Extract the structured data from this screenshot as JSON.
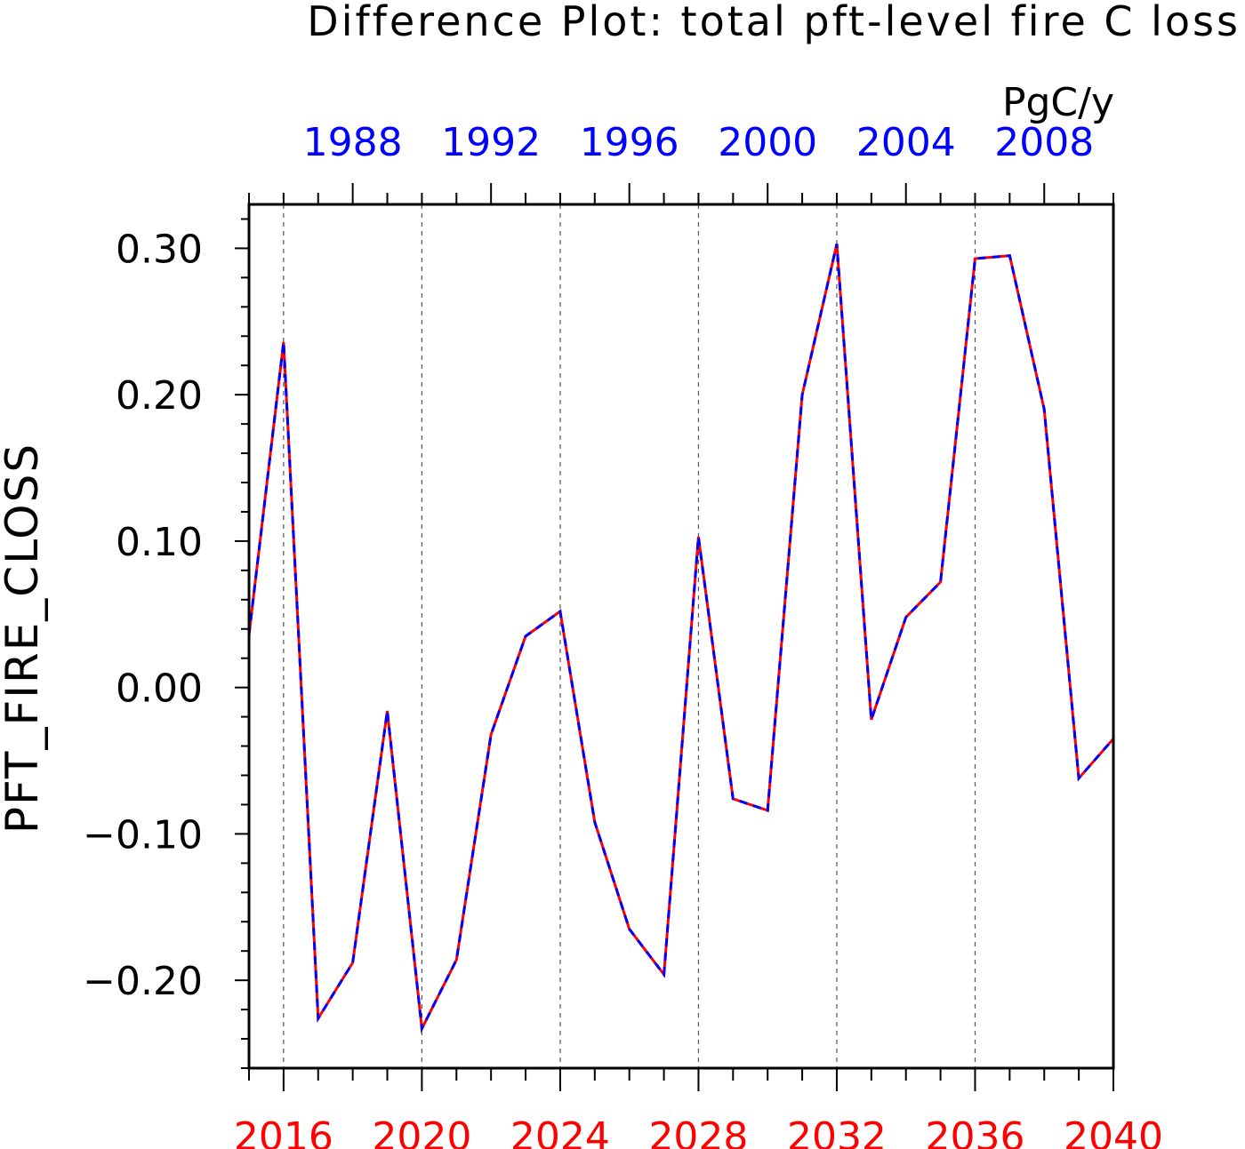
{
  "chart_data": {
    "type": "line",
    "title": "Difference Plot: total pft-level fire C loss",
    "units": "PgC/y",
    "ylabel": "PFT_FIRE_CLOSS",
    "xlabel": "",
    "ylim": [
      -0.26,
      0.33
    ],
    "yticks": [
      -0.2,
      -0.1,
      0.0,
      0.1,
      0.2,
      0.3
    ],
    "ytick_labels": [
      "-0.20",
      "-0.10",
      "0.00",
      "0.10",
      "0.20",
      "0.30"
    ],
    "bottom_axis": {
      "color": "#ff0000",
      "range": [
        2015,
        2040
      ],
      "ticks": [
        2016,
        2020,
        2024,
        2028,
        2032,
        2036,
        2040
      ],
      "tick_labels": [
        "2016",
        "2020",
        "2024",
        "2028",
        "2032",
        "2036",
        "2040"
      ]
    },
    "top_axis": {
      "color": "#0000ff",
      "range": [
        1985,
        2010
      ],
      "ticks": [
        1988,
        1992,
        1996,
        2000,
        2004,
        2008
      ],
      "tick_labels": [
        "1988",
        "1992",
        "1996",
        "2000",
        "2004",
        "2008"
      ]
    },
    "grid": "vertical dashed at labeled bottom-axis ticks",
    "x": [
      2015,
      2016,
      2017,
      2018,
      2019,
      2020,
      2021,
      2022,
      2023,
      2024,
      2025,
      2026,
      2027,
      2028,
      2029,
      2030,
      2031,
      2032,
      2033,
      2034,
      2035,
      2036,
      2037,
      2038,
      2039,
      2040
    ],
    "series": [
      {
        "color": "#ff0000",
        "style": "solid",
        "values": [
          0.036,
          0.236,
          -0.226,
          -0.188,
          -0.016,
          -0.233,
          -0.186,
          -0.032,
          0.035,
          0.052,
          -0.092,
          -0.165,
          -0.196,
          0.103,
          -0.076,
          -0.084,
          0.2,
          0.303,
          -0.022,
          0.048,
          0.072,
          0.293,
          0.295,
          0.19,
          -0.062,
          -0.035
        ]
      },
      {
        "color": "#0000ff",
        "style": "dashed",
        "values": [
          0.036,
          0.236,
          -0.226,
          -0.188,
          -0.016,
          -0.233,
          -0.186,
          -0.032,
          0.035,
          0.052,
          -0.092,
          -0.165,
          -0.196,
          0.103,
          -0.076,
          -0.084,
          0.2,
          0.303,
          -0.022,
          0.048,
          0.072,
          0.293,
          0.295,
          0.19,
          -0.062,
          -0.035
        ]
      }
    ]
  }
}
